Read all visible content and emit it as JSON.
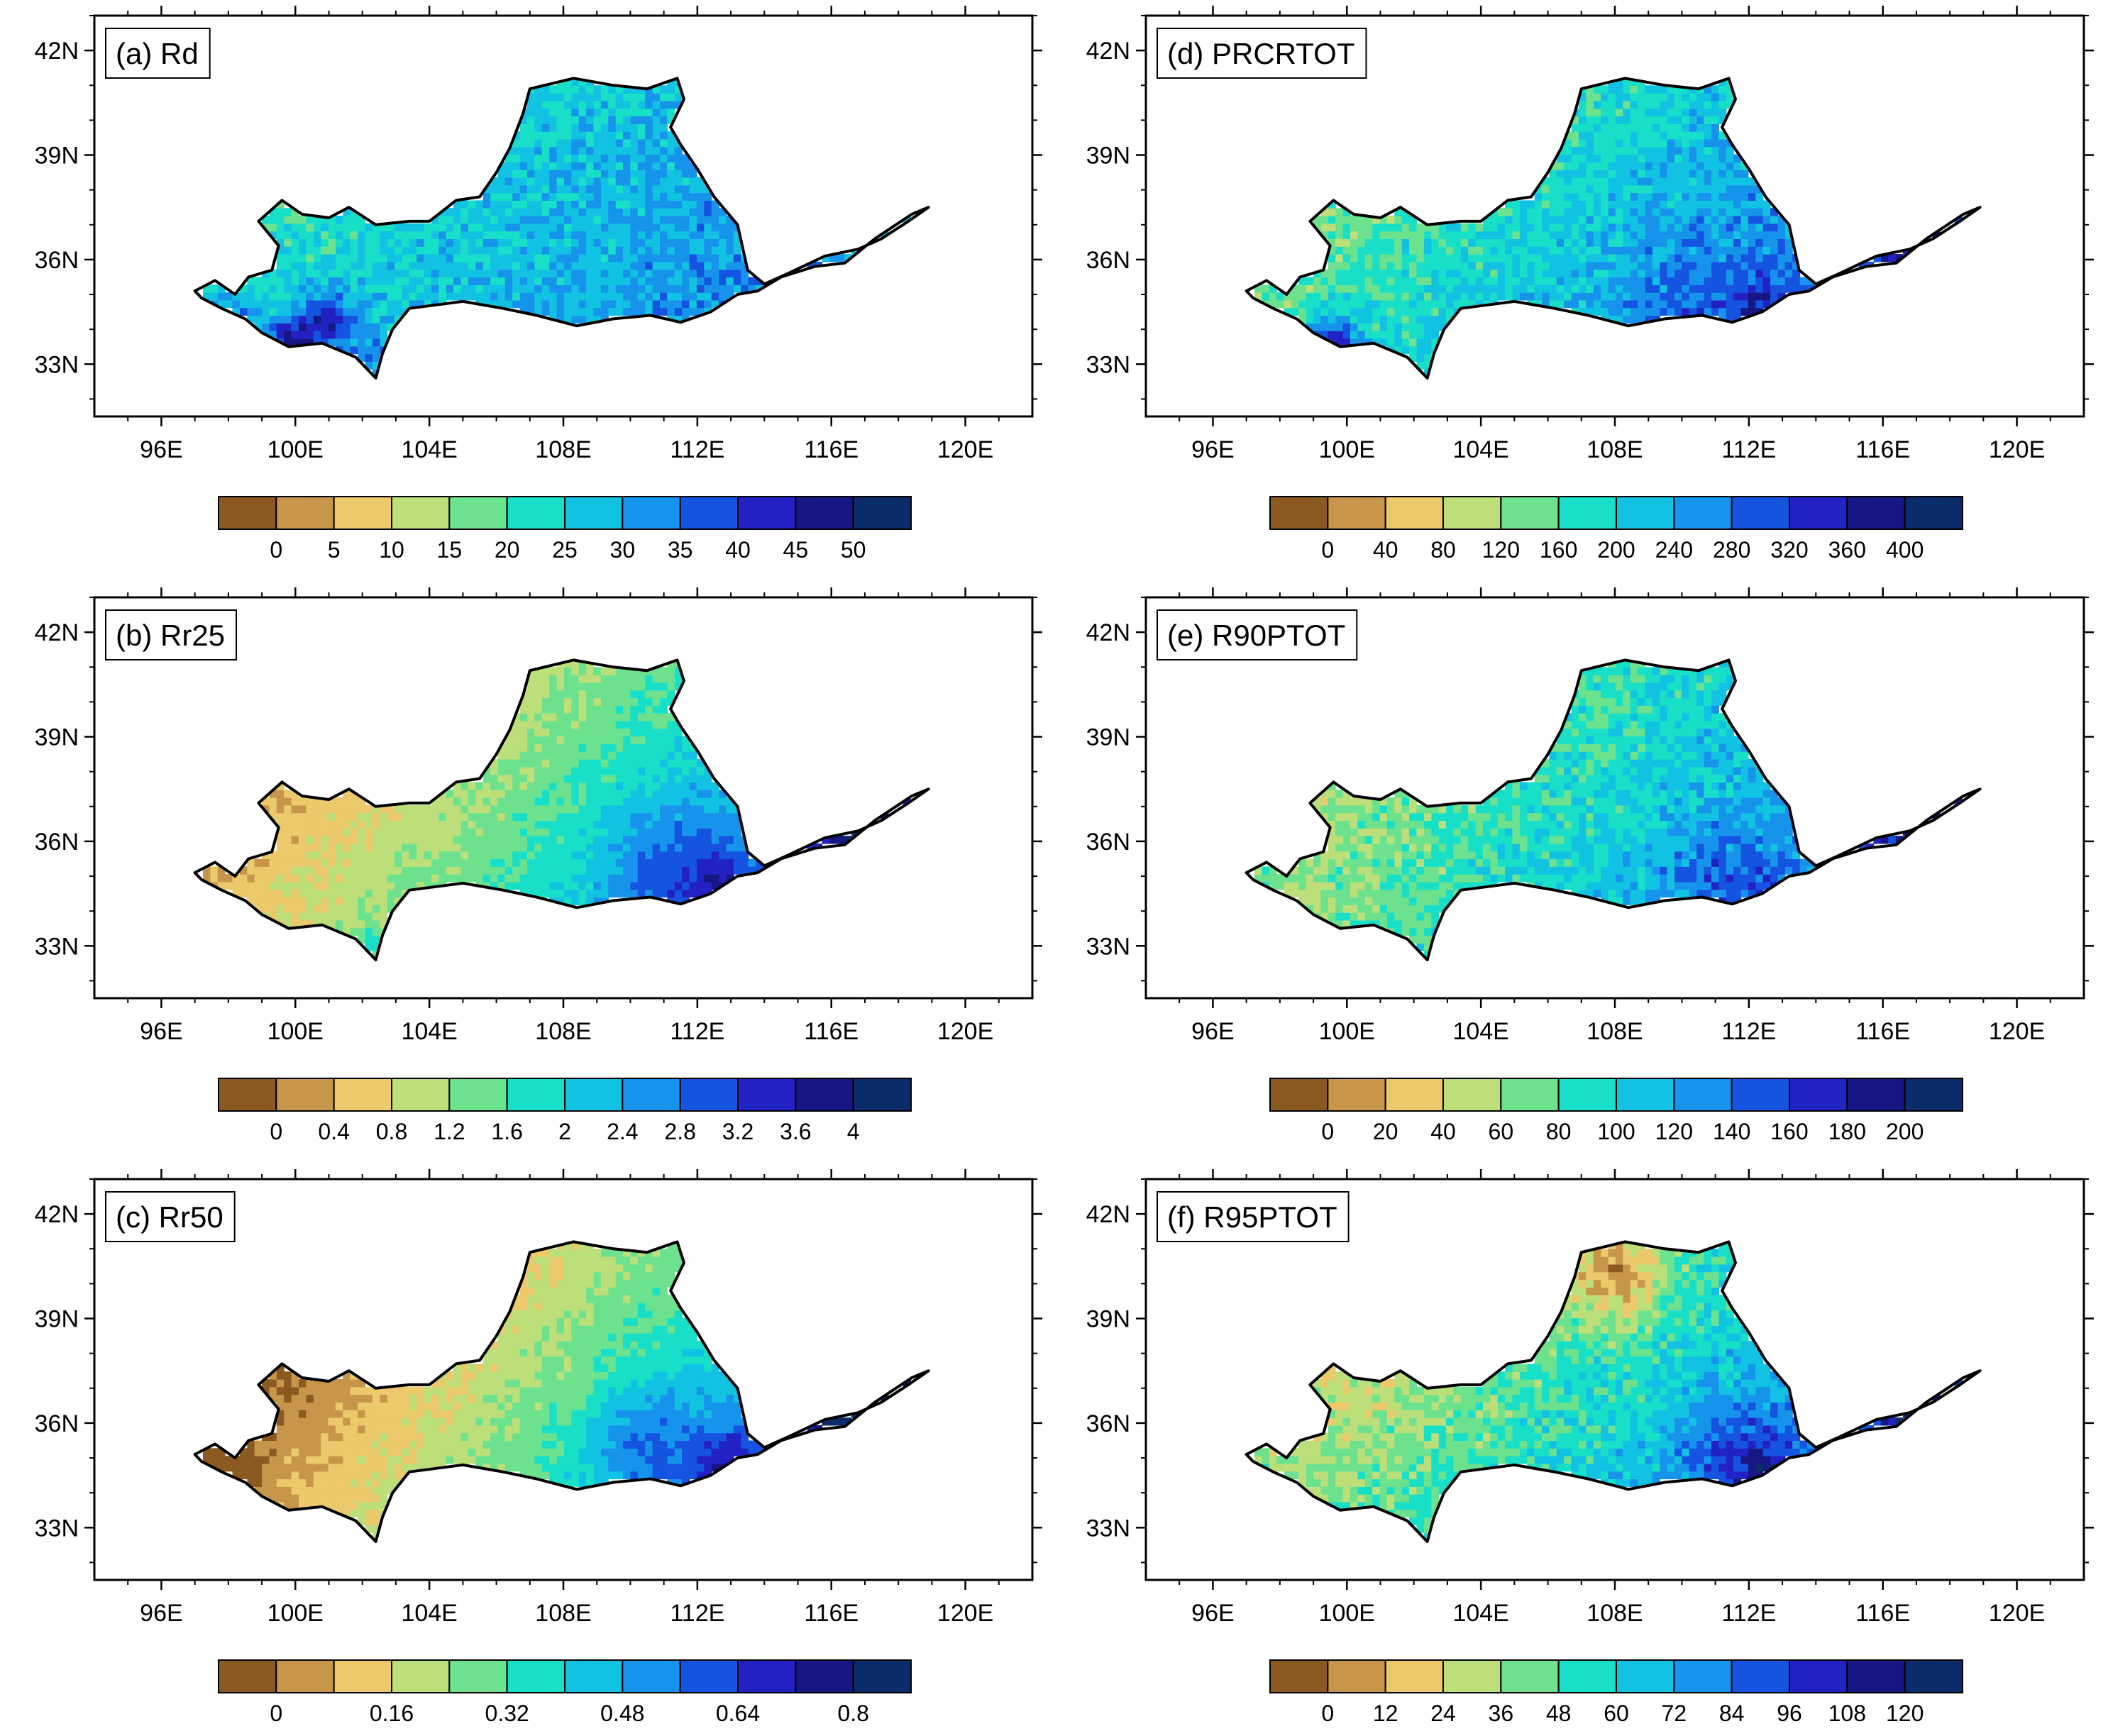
{
  "figure": {
    "description_free": true
  },
  "map_extent": {
    "lon_min": 94.0,
    "lon_max": 122.0,
    "lat_min": 31.5,
    "lat_max": 43.0
  },
  "axes": {
    "x_ticks": [
      {
        "lon": 96,
        "label": "96E"
      },
      {
        "lon": 100,
        "label": "100E"
      },
      {
        "lon": 104,
        "label": "104E"
      },
      {
        "lon": 108,
        "label": "108E"
      },
      {
        "lon": 112,
        "label": "112E"
      },
      {
        "lon": 116,
        "label": "116E"
      },
      {
        "lon": 120,
        "label": "120E"
      }
    ],
    "y_ticks": [
      {
        "lat": 42,
        "label": "42N"
      },
      {
        "lat": 39,
        "label": "39N"
      },
      {
        "lat": 36,
        "label": "36N"
      },
      {
        "lat": 33,
        "label": "33N"
      }
    ]
  },
  "colorbar_colors": [
    "#8b5a20",
    "#c8964a",
    "#ecc96a",
    "#bcdf7a",
    "#6de28e",
    "#18e0c8",
    "#12c2e2",
    "#1694ec",
    "#1554e0",
    "#2222c4",
    "#161685",
    "#0a2c6a"
  ],
  "basin_outline": [
    [
      97.0,
      35.1
    ],
    [
      97.6,
      35.4
    ],
    [
      98.2,
      35.0
    ],
    [
      98.6,
      35.5
    ],
    [
      99.3,
      35.7
    ],
    [
      99.5,
      36.4
    ],
    [
      98.9,
      37.1
    ],
    [
      99.6,
      37.7
    ],
    [
      100.2,
      37.3
    ],
    [
      101.0,
      37.2
    ],
    [
      101.6,
      37.5
    ],
    [
      102.4,
      37.0
    ],
    [
      103.4,
      37.1
    ],
    [
      104.0,
      37.1
    ],
    [
      104.8,
      37.7
    ],
    [
      105.5,
      37.8
    ],
    [
      106.0,
      38.5
    ],
    [
      106.4,
      39.2
    ],
    [
      106.8,
      40.2
    ],
    [
      107.0,
      40.9
    ],
    [
      108.3,
      41.2
    ],
    [
      109.5,
      41.0
    ],
    [
      110.5,
      40.9
    ],
    [
      111.4,
      41.2
    ],
    [
      111.6,
      40.6
    ],
    [
      111.2,
      39.8
    ],
    [
      111.5,
      39.3
    ],
    [
      112.0,
      38.6
    ],
    [
      112.5,
      37.8
    ],
    [
      113.2,
      37.0
    ],
    [
      113.5,
      35.7
    ],
    [
      114.0,
      35.3
    ],
    [
      114.7,
      35.6
    ],
    [
      115.8,
      36.1
    ],
    [
      116.8,
      36.3
    ],
    [
      117.5,
      36.6
    ],
    [
      118.3,
      37.1
    ],
    [
      118.9,
      37.5
    ],
    [
      118.4,
      37.3
    ],
    [
      117.3,
      36.6
    ],
    [
      116.4,
      35.9
    ],
    [
      115.5,
      35.8
    ],
    [
      114.5,
      35.5
    ],
    [
      113.8,
      35.1
    ],
    [
      113.2,
      35.0
    ],
    [
      112.4,
      34.5
    ],
    [
      111.5,
      34.2
    ],
    [
      110.6,
      34.4
    ],
    [
      109.5,
      34.3
    ],
    [
      108.4,
      34.1
    ],
    [
      107.2,
      34.4
    ],
    [
      106.2,
      34.6
    ],
    [
      105.0,
      34.8
    ],
    [
      104.2,
      34.7
    ],
    [
      103.4,
      34.6
    ],
    [
      102.9,
      34.0
    ],
    [
      102.6,
      33.3
    ],
    [
      102.4,
      32.6
    ],
    [
      101.8,
      33.2
    ],
    [
      100.8,
      33.6
    ],
    [
      99.8,
      33.5
    ],
    [
      99.0,
      33.9
    ],
    [
      98.5,
      34.3
    ],
    [
      97.8,
      34.6
    ],
    [
      97.2,
      34.9
    ]
  ],
  "panels": [
    {
      "id": "a",
      "label": "(a) Rd",
      "colorbar_ticks": [
        "0",
        "5",
        "10",
        "15",
        "20",
        "25",
        "30",
        "35",
        "40",
        "45",
        "50"
      ],
      "field": {
        "base": 5.8,
        "east_gradient": 1.1,
        "north_gradient": -0.4,
        "noise": 2,
        "hotspots": [
          {
            "lon": 99.8,
            "lat": 33.4,
            "r": 1.0,
            "a": 4
          },
          {
            "lon": 101.0,
            "lat": 34.2,
            "r": 0.9,
            "a": 3
          },
          {
            "lon": 117.0,
            "lat": 36.1,
            "r": 1.1,
            "a": -1
          },
          {
            "lon": 102.2,
            "lat": 33.2,
            "r": 0.6,
            "a": 2
          },
          {
            "lon": 98.0,
            "lat": 34.6,
            "r": 0.8,
            "a": 2
          }
        ]
      }
    },
    {
      "id": "d",
      "label": "(d) PRCRTOT",
      "colorbar_ticks": [
        "0",
        "40",
        "80",
        "120",
        "160",
        "200",
        "240",
        "280",
        "320",
        "360",
        "400"
      ],
      "field": {
        "base": 5.4,
        "east_gradient": 1.7,
        "north_gradient": -0.6,
        "noise": 2,
        "hotspots": [
          {
            "lon": 99.6,
            "lat": 33.4,
            "r": 1.0,
            "a": 4
          },
          {
            "lon": 110.0,
            "lat": 35.0,
            "r": 2.0,
            "a": 1
          },
          {
            "lon": 117.0,
            "lat": 36.1,
            "r": 1.2,
            "a": 2
          },
          {
            "lon": 112.3,
            "lat": 34.4,
            "r": 1.0,
            "a": 2
          }
        ]
      }
    },
    {
      "id": "b",
      "label": "(b) Rr25",
      "colorbar_ticks": [
        "0",
        "0.4",
        "0.8",
        "1.2",
        "1.6",
        "2",
        "2.4",
        "2.8",
        "3.2",
        "3.6",
        "4"
      ],
      "field": {
        "base": 3.7,
        "east_gradient": 2.8,
        "north_gradient": -0.9,
        "noise": 1,
        "hotspots": [
          {
            "lon": 111.0,
            "lat": 35.2,
            "r": 2.0,
            "a": 2
          },
          {
            "lon": 112.8,
            "lat": 34.6,
            "r": 1.0,
            "a": 2
          },
          {
            "lon": 117.0,
            "lat": 36.1,
            "r": 1.5,
            "a": 4
          },
          {
            "lon": 102.4,
            "lat": 33.0,
            "r": 0.6,
            "a": 1
          }
        ]
      }
    },
    {
      "id": "e",
      "label": "(e) R90PTOT",
      "colorbar_ticks": [
        "0",
        "20",
        "40",
        "60",
        "80",
        "100",
        "120",
        "140",
        "160",
        "180",
        "200"
      ],
      "field": {
        "base": 4.8,
        "east_gradient": 1.9,
        "north_gradient": -0.5,
        "noise": 2,
        "hotspots": [
          {
            "lon": 111.0,
            "lat": 35.0,
            "r": 1.6,
            "a": 1.5
          },
          {
            "lon": 112.8,
            "lat": 34.3,
            "r": 0.8,
            "a": 2
          },
          {
            "lon": 117.0,
            "lat": 36.1,
            "r": 1.3,
            "a": 2.5
          },
          {
            "lon": 97.6,
            "lat": 34.8,
            "r": 0.7,
            "a": 1
          }
        ]
      }
    },
    {
      "id": "c",
      "label": "(c) Rr50",
      "colorbar_ticks": [
        "0",
        "0.16",
        "0.32",
        "0.48",
        "0.64",
        "0.8"
      ],
      "field": {
        "base": 3.0,
        "east_gradient": 3.4,
        "north_gradient": -1.0,
        "noise": 1,
        "hotspots": [
          {
            "lon": 110.5,
            "lat": 35.4,
            "r": 1.8,
            "a": 2
          },
          {
            "lon": 113.0,
            "lat": 34.7,
            "r": 1.0,
            "a": 3
          },
          {
            "lon": 117.0,
            "lat": 36.1,
            "r": 1.6,
            "a": 5
          },
          {
            "lon": 97.4,
            "lat": 34.8,
            "r": 1.2,
            "a": -2
          }
        ]
      }
    },
    {
      "id": "f",
      "label": "(f) R95PTOT",
      "colorbar_ticks": [
        "0",
        "12",
        "24",
        "36",
        "48",
        "60",
        "72",
        "84",
        "96",
        "108",
        "120"
      ],
      "field": {
        "base": 4.5,
        "east_gradient": 2.2,
        "north_gradient": -0.9,
        "noise": 2,
        "hotspots": [
          {
            "lon": 108.0,
            "lat": 40.2,
            "r": 1.3,
            "a": -3
          },
          {
            "lon": 111.5,
            "lat": 35.0,
            "r": 1.6,
            "a": 2
          },
          {
            "lon": 112.8,
            "lat": 34.3,
            "r": 0.8,
            "a": 3
          },
          {
            "lon": 117.0,
            "lat": 36.1,
            "r": 1.3,
            "a": 3
          },
          {
            "lon": 97.6,
            "lat": 34.8,
            "r": 0.7,
            "a": 1
          }
        ]
      }
    }
  ]
}
